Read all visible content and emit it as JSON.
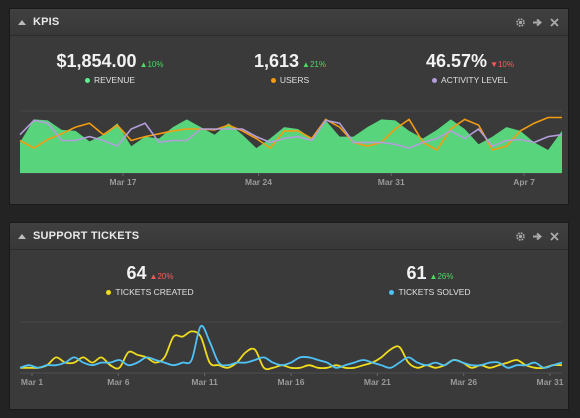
{
  "kpis": {
    "title": "KPIS",
    "stats": [
      {
        "value": "$1,854.00",
        "delta": "10%",
        "direction": "up",
        "label": "REVENUE",
        "color": "#5ef08a"
      },
      {
        "value": "1,613",
        "delta": "21%",
        "direction": "up",
        "label": "USERS",
        "color": "#f39c12"
      },
      {
        "value": "46.57%",
        "delta": "10%",
        "direction": "down",
        "label": "ACTIVITY LEVEL",
        "color": "#b39ddb"
      }
    ],
    "chart_data": {
      "type": "area",
      "x_ticks": [
        "Mar 17",
        "Mar 24",
        "Mar 31",
        "Apr 7"
      ],
      "series": [
        {
          "name": "REVENUE",
          "color": "#5ef08a",
          "values": [
            32,
            56,
            55,
            45,
            44,
            33,
            40,
            52,
            28,
            38,
            36,
            48,
            56,
            48,
            40,
            52,
            40,
            26,
            36,
            48,
            46,
            36,
            55,
            38,
            38,
            48,
            56,
            55,
            44,
            36,
            45,
            56,
            46,
            30,
            38,
            48,
            44,
            32,
            24,
            44
          ]
        },
        {
          "name": "USERS",
          "color": "#f39c12",
          "values": [
            34,
            26,
            35,
            41,
            48,
            52,
            40,
            50,
            34,
            38,
            41,
            44,
            46,
            46,
            45,
            50,
            44,
            36,
            26,
            44,
            44,
            36,
            56,
            48,
            32,
            28,
            32,
            46,
            56,
            32,
            24,
            46,
            56,
            50,
            24,
            28,
            44,
            52,
            58,
            58
          ]
        },
        {
          "name": "ACTIVITY LEVEL",
          "color": "#b39ddb",
          "values": [
            40,
            55,
            52,
            34,
            34,
            38,
            34,
            28,
            46,
            52,
            32,
            34,
            34,
            46,
            46,
            46,
            46,
            38,
            32,
            36,
            38,
            34,
            55,
            52,
            32,
            32,
            32,
            30,
            26,
            32,
            36,
            44,
            36,
            46,
            28,
            34,
            35,
            32,
            38,
            40
          ]
        }
      ]
    }
  },
  "support": {
    "title": "SUPPORT TICKETS",
    "stats": [
      {
        "value": "64",
        "delta": "20%",
        "direction": "up",
        "label": "TICKETS CREATED",
        "color": "#f0dc1c",
        "delta_color": "#ff5b5b"
      },
      {
        "value": "61",
        "delta": "26%",
        "direction": "up",
        "label": "TICKETS SOLVED",
        "color": "#4fc3f7",
        "delta_color": "#4cd964"
      }
    ],
    "chart_data": {
      "type": "line",
      "x_ticks": [
        "Mar 1",
        "Mar 6",
        "Mar 11",
        "Mar 16",
        "Mar 21",
        "Mar 26",
        "Mar 31"
      ],
      "series": [
        {
          "name": "TICKETS CREATED",
          "color": "#f0dc1c",
          "values": [
            2,
            2,
            2,
            3,
            6,
            4,
            4,
            6,
            4,
            6,
            3,
            2,
            8,
            7,
            6,
            4,
            6,
            14,
            14,
            16,
            14,
            4,
            3,
            2,
            4,
            8,
            9,
            2,
            2,
            3,
            2,
            2,
            3,
            2,
            2,
            3,
            2,
            2,
            3,
            4,
            6,
            9,
            10,
            4,
            2,
            3,
            2,
            3,
            5,
            4,
            2,
            3,
            2,
            3,
            4,
            5,
            3,
            2,
            2,
            3,
            3
          ]
        },
        {
          "name": "TICKETS SOLVED",
          "color": "#4fc3f7",
          "values": [
            2,
            3,
            2,
            3,
            3,
            4,
            6,
            4,
            3,
            4,
            4,
            5,
            3,
            4,
            6,
            5,
            4,
            3,
            4,
            5,
            18,
            12,
            4,
            3,
            4,
            4,
            5,
            6,
            4,
            3,
            4,
            6,
            6,
            5,
            4,
            2,
            3,
            4,
            5,
            4,
            3,
            2,
            4,
            6,
            4,
            3,
            4,
            3,
            5,
            4,
            3,
            3,
            4,
            4,
            2,
            3,
            3,
            4,
            2,
            3,
            4
          ]
        }
      ]
    }
  },
  "tools": [
    "gear-icon",
    "arrow-right-icon",
    "close-icon"
  ]
}
